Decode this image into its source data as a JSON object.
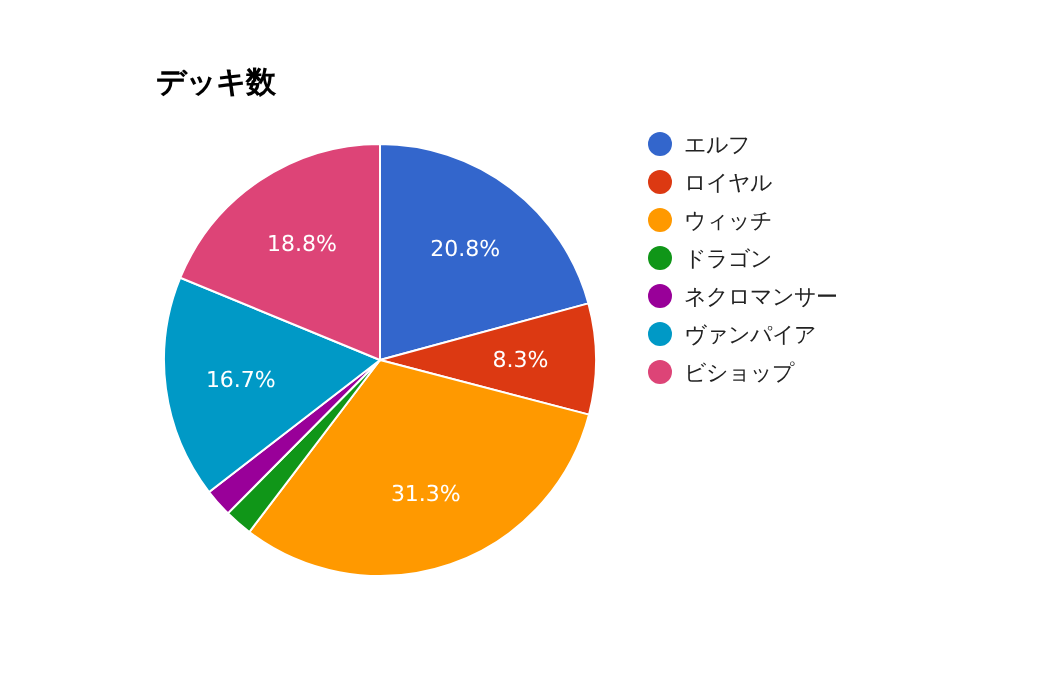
{
  "chart_data": {
    "type": "pie",
    "title": "デッキ数",
    "categories": [
      "エルフ",
      "ロイヤル",
      "ウィッチ",
      "ドラゴン",
      "ネクロマンサー",
      "ヴァンパイア",
      "ビショップ"
    ],
    "values": [
      20.8,
      8.3,
      31.3,
      2.1,
      2.1,
      16.7,
      18.8
    ],
    "colors": [
      "#3366cc",
      "#dc3912",
      "#ff9900",
      "#109618",
      "#990099",
      "#0099c6",
      "#dd4477"
    ],
    "value_labels": [
      "20.8%",
      "8.3%",
      "31.3%",
      null,
      null,
      "16.7%",
      "18.8%"
    ],
    "legend": "right"
  }
}
